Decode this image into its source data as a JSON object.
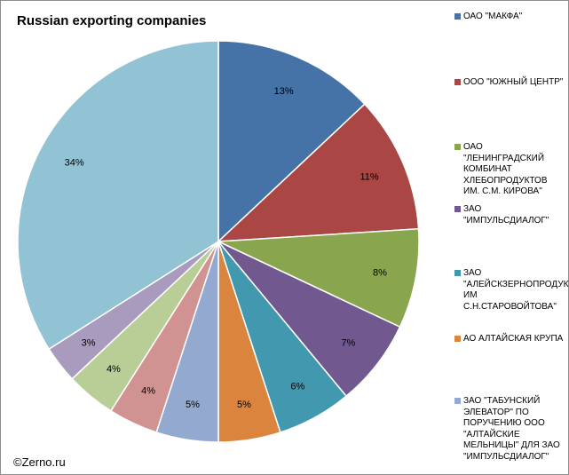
{
  "chart_data": {
    "type": "pie",
    "title": "Russian exporting companies",
    "start_angle_deg": 0,
    "direction": "clockwise",
    "slices": [
      {
        "label": "ОАО \"МАКФА\"",
        "value": 13,
        "value_label": "13%",
        "color": "#4572A7"
      },
      {
        "label": "ООО \"ЮЖНЫЙ ЦЕНТР\"",
        "value": 11,
        "value_label": "11%",
        "color": "#AA4643"
      },
      {
        "label": "ОАО \"ЛЕНИНГРАДСКИЙ КОМБИНАТ ХЛЕБОПРОДУКТОВ ИМ. С.М. КИРОВА\"",
        "value": 8,
        "value_label": "8%",
        "color": "#89A54E"
      },
      {
        "label": "ЗАО \"ИМПУЛЬСДИАЛОГ\"",
        "value": 7,
        "value_label": "7%",
        "color": "#71588F"
      },
      {
        "label": "ЗАО \"АЛЕЙСКЗЕРНОПРОДУКТ ИМ С.Н.СТАРОВОЙТОВА\"",
        "value": 6,
        "value_label": "6%",
        "color": "#4198AF"
      },
      {
        "label": "АО АЛТАЙСКАЯ КРУПА",
        "value": 5,
        "value_label": "5%",
        "color": "#DB843D"
      },
      {
        "label": "ЗАО \"ТАБУНСКИЙ ЭЛЕВАТОР\" ПО ПОРУЧЕНИЮ ООО \"АЛТАЙСКИЕ МЕЛЬНИЦЫ\" ДЛЯ ЗАО \"ИМПУЛЬСДИАЛОГ\"",
        "value": 5,
        "value_label": "5%",
        "color": "#93A9CF"
      },
      {
        "label": "",
        "value": 4,
        "value_label": "4%",
        "color": "#D19392"
      },
      {
        "label": "",
        "value": 4,
        "value_label": "4%",
        "color": "#B9CD96"
      },
      {
        "label": "",
        "value": 3,
        "value_label": "3%",
        "color": "#A99BBD"
      },
      {
        "label": "",
        "value": 34,
        "value_label": "34%",
        "color": "#92C3D4"
      }
    ],
    "legend": {
      "placement": "right",
      "entries": [
        "ОАО \"МАКФА\"",
        "ООО \"ЮЖНЫЙ ЦЕНТР\"",
        "ОАО \"ЛЕНИНГРАДСКИЙ КОМБИНАТ ХЛЕБОПРОДУКТОВ ИМ. С.М. КИРОВА\"",
        "ЗАО \"ИМПУЛЬСДИАЛОГ\"",
        "ЗАО \"АЛЕЙСКЗЕРНОПРОДУКТ ИМ С.Н.СТАРОВОЙТОВА\"",
        "АО АЛТАЙСКАЯ КРУПА",
        "ЗАО \"ТАБУНСКИЙ ЭЛЕВАТОР\" ПО ПОРУЧЕНИЮ ООО \"АЛТАЙСКИЕ МЕЛЬНИЦЫ\" ДЛЯ ЗАО \"ИМПУЛЬСДИАЛОГ\""
      ]
    }
  },
  "watermark": "©Zerno.ru"
}
